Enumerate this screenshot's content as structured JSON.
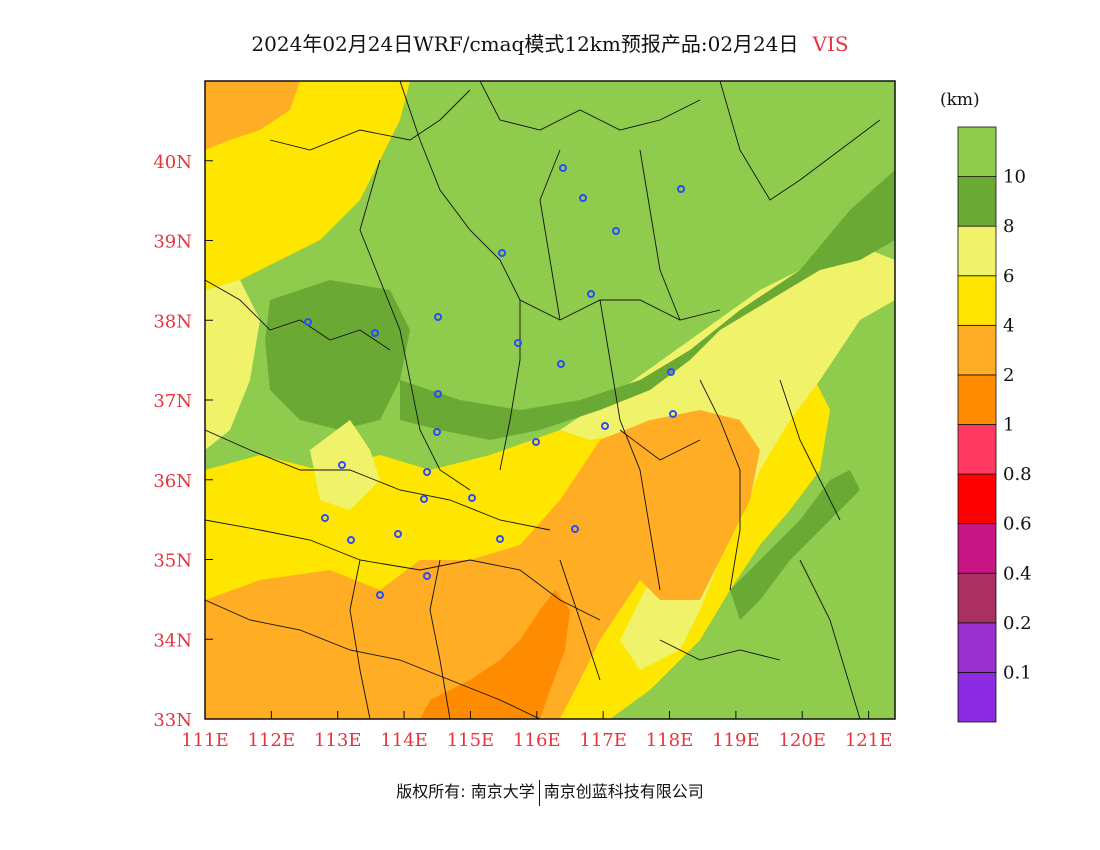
{
  "title": {
    "main": "2024年02月24日WRF/cmaq模式12km预报产品:02月24日",
    "variable": "VIS"
  },
  "colorbar": {
    "unit": "(km)",
    "colors": [
      "#8b2be2",
      "#9b30d0",
      "#a93060",
      "#c71585",
      "#ff0000",
      "#ff3860",
      "#ff8c00",
      "#ffad25",
      "#ffe600",
      "#f0f36a",
      "#6aaa34",
      "#8fcc4e"
    ],
    "boundary_labels": [
      "0.1",
      "0.2",
      "0.4",
      "0.6",
      "0.8",
      "1",
      "2",
      "4",
      "6",
      "8",
      "10"
    ]
  },
  "axes": {
    "x_labels": [
      "111E",
      "112E",
      "113E",
      "114E",
      "115E",
      "116E",
      "117E",
      "118E",
      "119E",
      "120E",
      "121E"
    ],
    "y_labels": [
      "33N",
      "34N",
      "35N",
      "36N",
      "37N",
      "38N",
      "39N",
      "40N"
    ]
  },
  "palette": {
    "orange": "#ff8c00",
    "light_orange": "#ffad25",
    "yellow": "#ffe600",
    "light_yellow": "#f0f36a",
    "dark_green": "#6aaa34",
    "green": "#8fcc4e",
    "station": "#2a4df5",
    "axis_text": "#e8333a"
  },
  "footer": {
    "left": "版权所有: 南京大学",
    "right": "南京创蓝科技有限公司"
  }
}
